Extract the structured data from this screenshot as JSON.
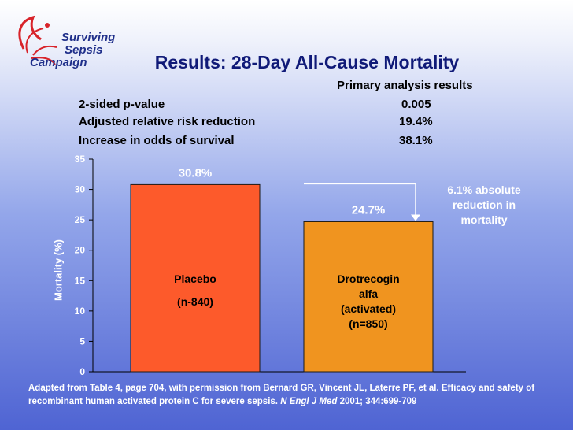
{
  "logo": {
    "line1": "Surviving",
    "line2": "Sepsis",
    "line3": "Campaign"
  },
  "title": "Results: 28-Day All-Cause Mortality",
  "stats": {
    "header": "Primary analysis results",
    "rows": [
      {
        "label": "2-sided p-value",
        "value": "0.005"
      },
      {
        "label": "Adjusted relative risk reduction",
        "value": "19.4%"
      },
      {
        "label": "Increase in odds of survival",
        "value": "38.1%"
      }
    ]
  },
  "chart_data": {
    "type": "bar",
    "categories": [
      "Placebo\n(n-840)",
      "Drotrecogin alfa (activated) (n=850)"
    ],
    "bar_text": [
      [
        "Placebo",
        "(n-840)"
      ],
      [
        "Drotrecogin",
        "alfa",
        "(activated)",
        "(n=850)"
      ]
    ],
    "values": [
      30.8,
      24.7
    ],
    "data_labels": [
      "30.8%",
      "24.7%"
    ],
    "bar_colors": [
      "#fd5a2b",
      "#f0941f"
    ],
    "ylabel": "Mortality (%)",
    "ylim": [
      0,
      35
    ],
    "yticks": [
      0,
      5,
      10,
      15,
      20,
      25,
      30,
      35
    ],
    "annotation": [
      "6.1% absolute",
      "reduction in",
      "mortality"
    ]
  },
  "source": {
    "text": "Adapted from Table 4, page 704, with permission from Bernard GR, Vincent JL, Laterre PF, et al. Efficacy and safety of recombinant human activated protein C for severe sepsis. ",
    "journal": "N Engl J Med",
    "citation": " 2001; 344:699-709"
  }
}
